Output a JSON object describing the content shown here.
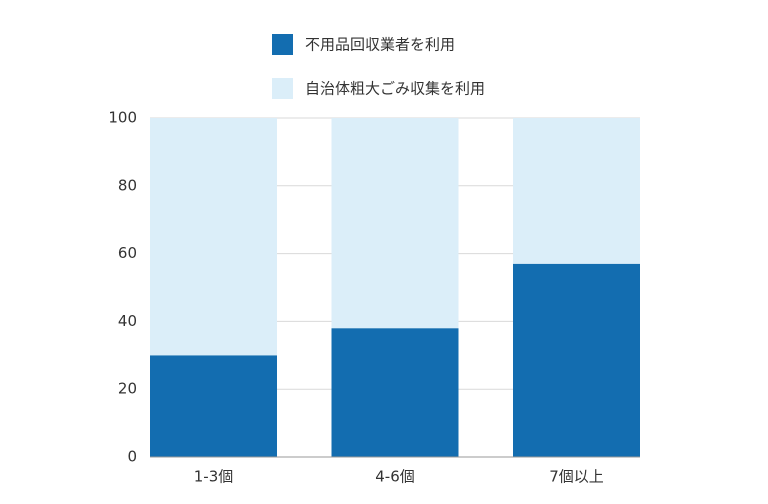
{
  "chart_data": {
    "type": "stacked-bar",
    "categories": [
      "1-3個",
      "4-6個",
      "7個以上"
    ],
    "series": [
      {
        "name": "不用品回収業者を利用",
        "color": "#136db0",
        "values": [
          30,
          38,
          57
        ]
      },
      {
        "name": "自治体粗大ごみ収集を利用",
        "color": "#dbeef9",
        "values": [
          70,
          62,
          43
        ]
      }
    ],
    "ylim": [
      0,
      100
    ],
    "yticks": [
      0,
      20,
      40,
      60,
      80,
      100
    ],
    "grid": true
  }
}
